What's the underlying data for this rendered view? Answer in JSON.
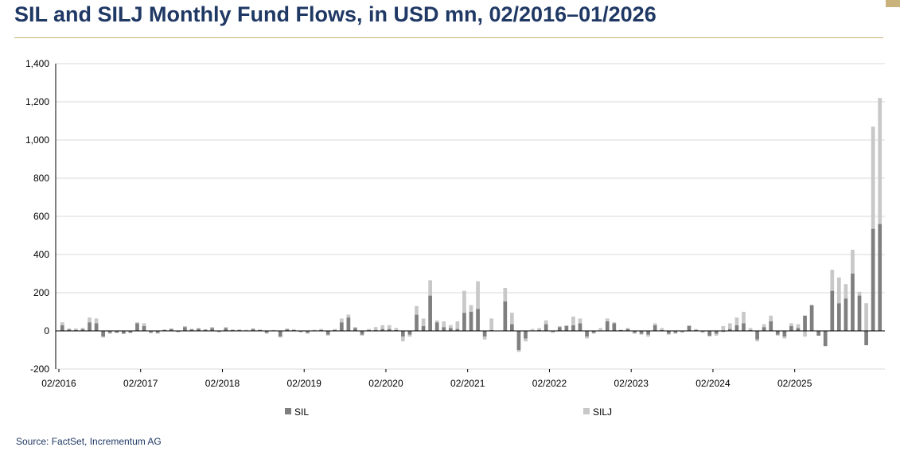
{
  "title": "SIL and SILJ Monthly Fund Flows, in USD mn, 02/2016–01/2026",
  "source": "Source: FactSet, Incrementum AG",
  "colors": {
    "title": "#1f3864",
    "rule": "#c9b27c",
    "sil": "#7f7f7f",
    "silj": "#c8c8c8",
    "grid": "#d9d9d9"
  },
  "chart_data": {
    "type": "bar",
    "stacked": true,
    "x_start": "02/2016",
    "x_end": "01/2026",
    "ylim": [
      -200,
      1400
    ],
    "yticks": [
      "-200",
      "0",
      "200",
      "400",
      "600",
      "800",
      "1,000",
      "1,200",
      "1,400"
    ],
    "xticks": [
      "02/2016",
      "02/2017",
      "02/2018",
      "02/2019",
      "02/2020",
      "02/2021",
      "02/2022",
      "02/2023",
      "02/2024",
      "02/2025"
    ],
    "grid": true,
    "legend_position": "bottom",
    "series": [
      {
        "name": "SIL",
        "values": [
          30,
          8,
          5,
          10,
          45,
          40,
          -30,
          -10,
          -10,
          -15,
          -10,
          40,
          25,
          -8,
          -10,
          5,
          10,
          -5,
          20,
          8,
          12,
          6,
          15,
          -5,
          15,
          5,
          5,
          3,
          10,
          5,
          -10,
          3,
          -30,
          8,
          5,
          -5,
          -10,
          3,
          5,
          -20,
          5,
          45,
          70,
          15,
          -20,
          5,
          5,
          10,
          10,
          5,
          -30,
          -20,
          85,
          25,
          185,
          45,
          20,
          15,
          10,
          95,
          100,
          115,
          -30,
          5,
          0,
          155,
          35,
          -100,
          -40,
          0,
          5,
          35,
          -5,
          20,
          25,
          30,
          40,
          -30,
          -10,
          0,
          50,
          40,
          5,
          10,
          -10,
          -15,
          -20,
          30,
          5,
          -15,
          -10,
          -5,
          25,
          5,
          -5,
          -25,
          -15,
          -5,
          10,
          30,
          40,
          5,
          -45,
          20,
          50,
          -20,
          -30,
          25,
          15,
          80,
          135,
          -25,
          -80,
          210,
          145,
          170,
          300,
          185,
          -75,
          535,
          560
        ]
      },
      {
        "name": "SILJ",
        "values": [
          15,
          5,
          8,
          5,
          25,
          25,
          -5,
          -5,
          0,
          0,
          0,
          5,
          15,
          -5,
          -5,
          3,
          3,
          -3,
          5,
          3,
          3,
          3,
          5,
          -2,
          5,
          3,
          3,
          3,
          3,
          3,
          -5,
          2,
          -5,
          5,
          3,
          -3,
          -5,
          3,
          5,
          -5,
          5,
          20,
          15,
          5,
          -5,
          5,
          15,
          20,
          20,
          10,
          -25,
          -10,
          45,
          40,
          80,
          10,
          30,
          15,
          40,
          115,
          35,
          145,
          -15,
          60,
          0,
          70,
          60,
          -10,
          -15,
          10,
          10,
          20,
          -5,
          5,
          5,
          45,
          25,
          -10,
          -5,
          15,
          15,
          5,
          0,
          5,
          -5,
          -5,
          -10,
          10,
          10,
          -5,
          -5,
          -5,
          5,
          5,
          -5,
          -5,
          -10,
          25,
          30,
          40,
          60,
          10,
          -10,
          15,
          30,
          -5,
          -10,
          15,
          20,
          -30,
          0,
          0,
          0,
          110,
          135,
          75,
          125,
          20,
          145,
          535,
          660
        ]
      }
    ]
  },
  "legend": {
    "sil_label": "SIL",
    "silj_label": "SILJ"
  }
}
